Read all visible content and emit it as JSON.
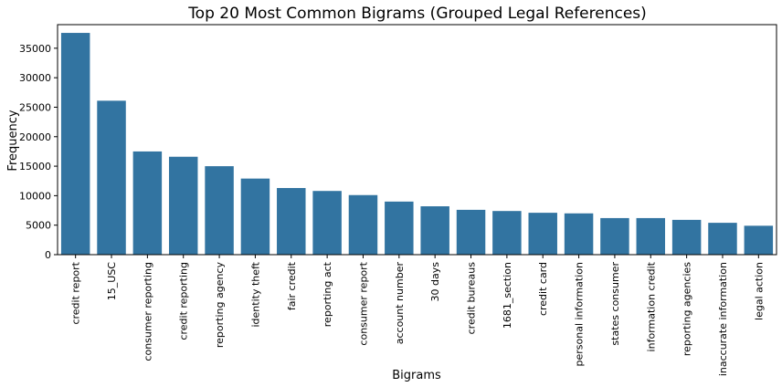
{
  "chart_data": {
    "type": "bar",
    "title": "Top 20 Most Common Bigrams (Grouped Legal References)",
    "xlabel": "Bigrams",
    "ylabel": "Frequency",
    "ylim": [
      0,
      39000
    ],
    "yticks": [
      0,
      5000,
      10000,
      15000,
      20000,
      25000,
      30000,
      35000
    ],
    "grid": false,
    "bar_color": "#3274a1",
    "categories": [
      "credit report",
      "15_USC",
      "consumer reporting",
      "credit reporting",
      "reporting agency",
      "identity theft",
      "fair credit",
      "reporting act",
      "consumer report",
      "account number",
      "30 days",
      "credit bureaus",
      "1681_section",
      "credit card",
      "personal information",
      "states consumer",
      "information credit",
      "reporting agencies",
      "inaccurate information",
      "legal action"
    ],
    "values": [
      37600,
      26100,
      17500,
      16600,
      15000,
      12900,
      11300,
      10800,
      10100,
      9000,
      8200,
      7600,
      7400,
      7100,
      7000,
      6200,
      6200,
      5900,
      5400,
      4900
    ]
  }
}
